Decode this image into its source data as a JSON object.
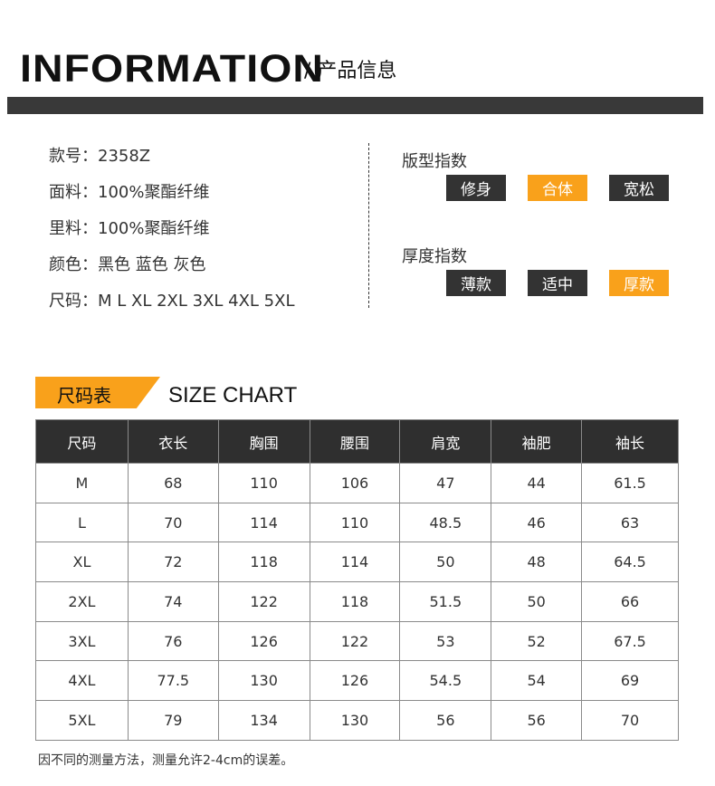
{
  "header": {
    "title": "INFORMATION",
    "subtitle": "/ 产品信息"
  },
  "info": [
    {
      "label": "款号：",
      "value": "2358Z"
    },
    {
      "label": "面料：",
      "value": "100%聚酯纤维"
    },
    {
      "label": "里料：",
      "value": "100%聚酯纤维"
    },
    {
      "label": "颜色：",
      "value": "黑色 蓝色 灰色"
    },
    {
      "label": "尺码：",
      "value": "M L XL 2XL 3XL 4XL 5XL"
    }
  ],
  "fit_index": {
    "title": "版型指数",
    "options": [
      "修身",
      "合体",
      "宽松"
    ],
    "selected": "合体"
  },
  "thickness_index": {
    "title": "厚度指数",
    "options": [
      "薄款",
      "适中",
      "厚款"
    ],
    "selected": "厚款"
  },
  "colors": {
    "accent": "#f9a11b",
    "dark": "#333333"
  },
  "size_chart": {
    "tag": "尺码表",
    "title": "SIZE CHART",
    "headers": [
      "尺码",
      "衣长",
      "胸围",
      "腰围",
      "肩宽",
      "袖肥",
      "袖长"
    ],
    "rows": [
      [
        "M",
        "68",
        "110",
        "106",
        "47",
        "44",
        "61.5"
      ],
      [
        "L",
        "70",
        "114",
        "110",
        "48.5",
        "46",
        "63"
      ],
      [
        "XL",
        "72",
        "118",
        "114",
        "50",
        "48",
        "64.5"
      ],
      [
        "2XL",
        "74",
        "122",
        "118",
        "51.5",
        "50",
        "66"
      ],
      [
        "3XL",
        "76",
        "126",
        "122",
        "53",
        "52",
        "67.5"
      ],
      [
        "4XL",
        "77.5",
        "130",
        "126",
        "54.5",
        "54",
        "69"
      ],
      [
        "5XL",
        "79",
        "134",
        "130",
        "56",
        "56",
        "70"
      ]
    ],
    "note": "因不同的测量方法，测量允许2-4cm的误差。"
  }
}
